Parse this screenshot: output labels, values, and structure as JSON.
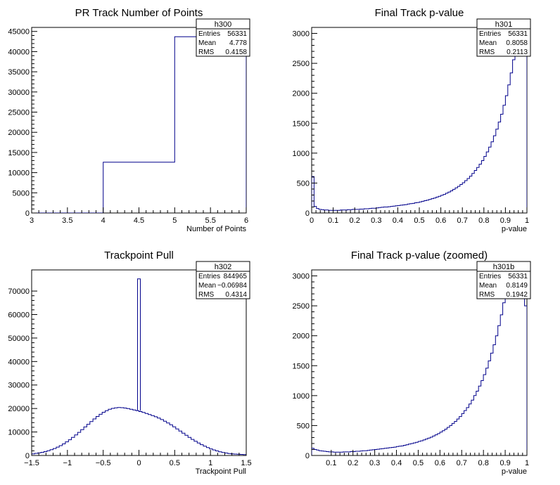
{
  "chart_data": [
    {
      "type": "histogram",
      "title": "PR Track Number of Points",
      "xlabel": "Number of Points",
      "ylabel": "",
      "xlim": [
        3,
        6
      ],
      "ylim": [
        0,
        46000
      ],
      "x_ticks": [
        3,
        3.5,
        4,
        4.5,
        5,
        5.5,
        6
      ],
      "y_ticks": [
        0,
        5000,
        10000,
        15000,
        20000,
        25000,
        30000,
        35000,
        40000,
        45000
      ],
      "line_color": "#00008b",
      "bin_edges": [
        3,
        4,
        5,
        6
      ],
      "counts": [
        0,
        12600,
        43700
      ],
      "stats": {
        "name": "h300",
        "rows": [
          [
            "Entries",
            "56331"
          ],
          [
            "Mean",
            "4.778"
          ],
          [
            "RMS",
            "0.4158"
          ]
        ]
      }
    },
    {
      "type": "histogram",
      "title": "Final Track p-value",
      "xlabel": "p-value",
      "ylabel": "",
      "xlim": [
        0,
        1
      ],
      "ylim": [
        0,
        3100
      ],
      "x_ticks": [
        0,
        0.1,
        0.2,
        0.3,
        0.4,
        0.5,
        0.6,
        0.7,
        0.8,
        0.9,
        1
      ],
      "y_ticks": [
        0,
        500,
        1000,
        1500,
        2000,
        2500,
        3000
      ],
      "line_color": "#00008b",
      "bin_range": [
        0,
        1
      ],
      "counts": [
        610,
        110,
        75,
        60,
        55,
        50,
        50,
        45,
        45,
        45,
        45,
        45,
        50,
        50,
        50,
        55,
        55,
        60,
        60,
        60,
        65,
        65,
        70,
        70,
        75,
        80,
        80,
        85,
        90,
        95,
        100,
        100,
        105,
        110,
        115,
        120,
        125,
        130,
        135,
        140,
        150,
        155,
        160,
        170,
        175,
        185,
        195,
        205,
        215,
        225,
        240,
        250,
        265,
        280,
        295,
        310,
        330,
        350,
        370,
        395,
        420,
        445,
        475,
        505,
        540,
        575,
        615,
        660,
        710,
        760,
        815,
        875,
        945,
        1020,
        1100,
        1190,
        1290,
        1400,
        1520,
        1650,
        1800,
        1960,
        2140,
        2340,
        2560,
        2790,
        3050,
        3300,
        3300,
        2800
      ],
      "stats": {
        "name": "h301",
        "rows": [
          [
            "Entries",
            "56331"
          ],
          [
            "Mean",
            "0.8058"
          ],
          [
            "RMS",
            "0.2113"
          ]
        ]
      }
    },
    {
      "type": "histogram",
      "title": "Trackpoint Pull",
      "xlabel": "Trackpoint Pull",
      "ylabel": "",
      "xlim": [
        -1.5,
        1.5
      ],
      "ylim": [
        0,
        79000
      ],
      "x_ticks": [
        -1.5,
        -1,
        -0.5,
        0,
        0.5,
        1,
        1.5
      ],
      "x_tick_labels": [
        "−1.5",
        "−1",
        "−0.5",
        "0",
        "0.5",
        "1",
        "1.5"
      ],
      "y_ticks": [
        0,
        10000,
        20000,
        30000,
        40000,
        50000,
        60000,
        70000
      ],
      "line_color": "#00008b",
      "bin_range": [
        -1.5,
        1.5
      ],
      "peak": {
        "x": 0,
        "value": 75200,
        "shoulder_value": 19000
      },
      "counts": [
        700,
        900,
        1100,
        1350,
        1650,
        2000,
        2450,
        2950,
        3550,
        4200,
        4950,
        5800,
        6700,
        7700,
        8750,
        9850,
        11000,
        12150,
        13300,
        14450,
        15550,
        16600,
        17550,
        18400,
        19100,
        19650,
        20050,
        20300,
        20400,
        20350,
        20200,
        20000,
        19700,
        19400,
        19050,
        18700,
        18300,
        17900,
        17450,
        17000,
        16500,
        15950,
        15300,
        14600,
        13850,
        13050,
        12200,
        11300,
        10400,
        9500,
        8600,
        7700,
        6850,
        6050,
        5300,
        4600,
        3950,
        3350,
        2800,
        2350,
        1950,
        1600,
        1300,
        1050,
        850,
        700,
        600,
        500,
        450,
        400
      ],
      "stats": {
        "name": "h302",
        "rows": [
          [
            "Entries",
            "844965"
          ],
          [
            "Mean",
            "−0.06984"
          ],
          [
            "RMS",
            "0.4314"
          ]
        ]
      }
    },
    {
      "type": "histogram",
      "title": "Final Track p-value (zoomed)",
      "xlabel": "p-value",
      "ylabel": "",
      "xlim": [
        0.01,
        1
      ],
      "ylim": [
        0,
        3100
      ],
      "x_ticks": [
        0.1,
        0.2,
        0.3,
        0.4,
        0.5,
        0.6,
        0.7,
        0.8,
        0.9,
        1
      ],
      "y_ticks": [
        0,
        500,
        1000,
        1500,
        2000,
        2500,
        3000
      ],
      "line_color": "#00008b",
      "bin_range": [
        0.01,
        1
      ],
      "counts": [
        120,
        100,
        90,
        80,
        75,
        70,
        65,
        60,
        60,
        55,
        55,
        55,
        55,
        60,
        60,
        60,
        65,
        65,
        70,
        70,
        75,
        80,
        80,
        85,
        90,
        95,
        100,
        105,
        110,
        115,
        120,
        125,
        130,
        135,
        140,
        150,
        155,
        160,
        170,
        180,
        190,
        200,
        210,
        220,
        235,
        245,
        260,
        275,
        290,
        305,
        325,
        345,
        365,
        390,
        415,
        440,
        470,
        500,
        535,
        570,
        610,
        650,
        700,
        750,
        800,
        860,
        925,
        1000,
        1075,
        1160,
        1250,
        1350,
        1460,
        1580,
        1710,
        1850,
        2000,
        2170,
        2350,
        2550,
        2770,
        3000,
        3300,
        3300,
        3300,
        3100,
        2900,
        2700,
        2500
      ],
      "stats": {
        "name": "h301b",
        "rows": [
          [
            "Entries",
            "56331"
          ],
          [
            "Mean",
            "0.8149"
          ],
          [
            "RMS",
            "0.1942"
          ]
        ]
      }
    }
  ]
}
